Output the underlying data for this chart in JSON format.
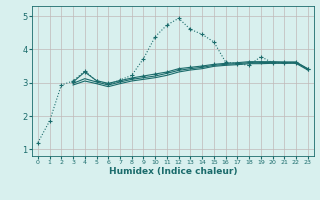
{
  "xlabel": "Humidex (Indice chaleur)",
  "xlim": [
    -0.5,
    23.5
  ],
  "ylim": [
    0.8,
    5.3
  ],
  "yticks": [
    1,
    2,
    3,
    4,
    5
  ],
  "xticks": [
    0,
    1,
    2,
    3,
    4,
    5,
    6,
    7,
    8,
    9,
    10,
    11,
    12,
    13,
    14,
    15,
    16,
    17,
    18,
    19,
    20,
    21,
    22,
    23
  ],
  "bg_color": "#d8f0ee",
  "grid_color": "#c0b8b8",
  "line_color": "#1a6b6b",
  "series1_dotted": {
    "x": [
      0,
      1,
      2,
      3,
      4,
      5,
      6,
      7,
      8,
      9,
      10,
      11,
      12,
      13,
      14,
      15,
      16,
      17,
      18,
      19,
      20,
      21,
      22,
      23
    ],
    "y": [
      1.2,
      1.85,
      2.93,
      3.05,
      3.35,
      3.05,
      2.95,
      3.08,
      3.22,
      3.72,
      4.38,
      4.73,
      4.93,
      4.6,
      4.45,
      4.22,
      3.62,
      3.57,
      3.52,
      3.78,
      3.6,
      3.6,
      3.6,
      3.4
    ]
  },
  "series2_solid_markers": {
    "x": [
      3,
      4,
      5,
      6,
      7,
      8,
      9,
      10,
      11,
      12,
      13,
      14,
      15,
      16,
      17,
      18,
      19,
      20,
      21,
      22,
      23
    ],
    "y": [
      3.02,
      3.32,
      3.06,
      2.98,
      3.06,
      3.14,
      3.2,
      3.26,
      3.32,
      3.42,
      3.46,
      3.5,
      3.55,
      3.58,
      3.6,
      3.63,
      3.63,
      3.63,
      3.62,
      3.62,
      3.42
    ]
  },
  "series3_solid": {
    "x": [
      3,
      4,
      5,
      6,
      7,
      8,
      9,
      10,
      11,
      12,
      13,
      14,
      15,
      16,
      17,
      18,
      19,
      20,
      21,
      22,
      23
    ],
    "y": [
      2.98,
      3.12,
      3.02,
      2.93,
      3.02,
      3.1,
      3.15,
      3.2,
      3.28,
      3.37,
      3.42,
      3.46,
      3.52,
      3.55,
      3.57,
      3.6,
      3.6,
      3.61,
      3.61,
      3.61,
      3.41
    ]
  },
  "series4_solid": {
    "x": [
      3,
      4,
      5,
      6,
      7,
      8,
      9,
      10,
      11,
      12,
      13,
      14,
      15,
      16,
      17,
      18,
      19,
      20,
      21,
      22,
      23
    ],
    "y": [
      2.93,
      3.05,
      2.97,
      2.88,
      2.97,
      3.05,
      3.1,
      3.15,
      3.22,
      3.32,
      3.38,
      3.42,
      3.49,
      3.52,
      3.54,
      3.57,
      3.57,
      3.58,
      3.58,
      3.58,
      3.38
    ]
  }
}
